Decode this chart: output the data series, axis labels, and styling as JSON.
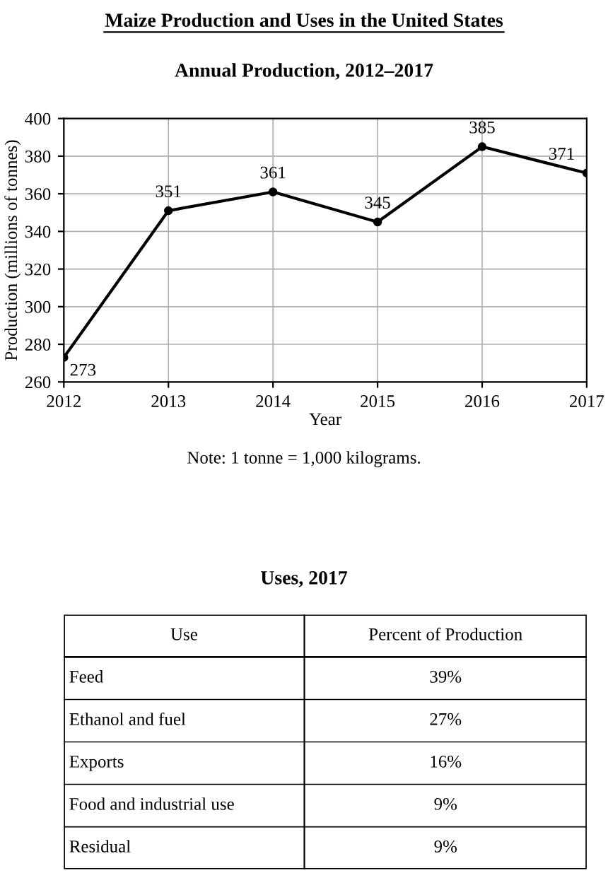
{
  "chart_data": [
    {
      "type": "line",
      "title": "Maize Production and Uses in the United States",
      "subtitle": "Annual Production, 2012–2017",
      "xlabel": "Year",
      "ylabel": "Production (millions of tonnes)",
      "x": [
        2012,
        2013,
        2014,
        2015,
        2016,
        2017
      ],
      "series": [
        {
          "color": "#000000",
          "values": [
            273,
            351,
            361,
            345,
            385,
            371
          ]
        }
      ],
      "xlim": [
        2012,
        2017
      ],
      "xticks": [
        2012,
        2013,
        2014,
        2015,
        2016,
        2017
      ],
      "ylim": [
        260,
        400
      ],
      "yticks": [
        260,
        280,
        300,
        320,
        340,
        360,
        380,
        400
      ],
      "grid": true,
      "marker": "circle",
      "data_labels": true,
      "annotations": [
        "Note: 1 tonne = 1,000 kilograms."
      ]
    },
    {
      "type": "other",
      "title": "Uses, 2017",
      "xlabel": "Use",
      "ylabel": "Percent of Production",
      "categories": [
        "Feed",
        "Ethanol and fuel",
        "Exports",
        "Food and industrial use",
        "Residual"
      ],
      "value_labels": [
        "39%",
        "27%",
        "16%",
        "9%",
        "9%"
      ]
    }
  ]
}
